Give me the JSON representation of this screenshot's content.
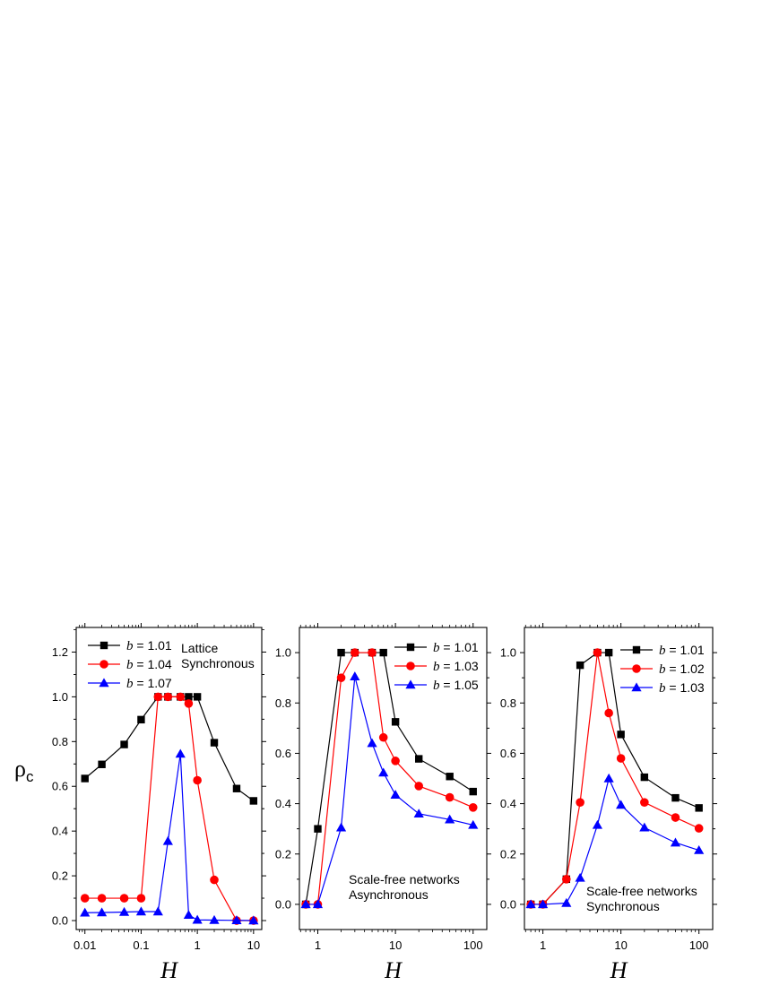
{
  "y_axis_label": {
    "main": "ρ",
    "sub": "c"
  },
  "chart_data": [
    {
      "type": "line",
      "xscale": "log",
      "xlim": [
        0.007,
        14
      ],
      "ylim": [
        -0.04,
        1.31
      ],
      "xticks": [
        0.01,
        0.1,
        1,
        10
      ],
      "xticklabels": [
        "0.01",
        "0.1",
        "1",
        "10"
      ],
      "yticks": [
        0.0,
        0.2,
        0.4,
        0.6,
        0.8,
        1.0,
        1.2
      ],
      "yticklabels": [
        "0.0",
        "0.2",
        "0.4",
        "0.6",
        "0.8",
        "1.0",
        "1.2"
      ],
      "xlabel": "H",
      "ylabel": "ρc",
      "annotation": [
        "Lattice",
        "Synchronous"
      ],
      "series": [
        {
          "name": "b = 1.01",
          "b_value": "1.01",
          "color": "#000000",
          "marker": "square",
          "x": [
            0.01,
            0.02,
            0.05,
            0.1,
            0.2,
            0.3,
            0.5,
            0.7,
            1,
            2,
            5,
            10
          ],
          "y": [
            0.635,
            0.698,
            0.787,
            0.898,
            1.0,
            1.0,
            1.0,
            1.0,
            1.0,
            0.795,
            0.59,
            0.535
          ]
        },
        {
          "name": "b = 1.04",
          "b_value": "1.04",
          "color": "#ff0000",
          "marker": "circle",
          "x": [
            0.01,
            0.02,
            0.05,
            0.1,
            0.2,
            0.3,
            0.5,
            0.7,
            1,
            2,
            5,
            10
          ],
          "y": [
            0.1,
            0.1,
            0.1,
            0.1,
            1.0,
            1.0,
            1.0,
            0.97,
            0.627,
            0.182,
            0.0,
            0.0
          ]
        },
        {
          "name": "b = 1.07",
          "b_value": "1.07",
          "color": "#0000ff",
          "marker": "triangle",
          "x": [
            0.01,
            0.02,
            0.05,
            0.1,
            0.2,
            0.3,
            0.5,
            0.7,
            1,
            2,
            5,
            10
          ],
          "y": [
            0.035,
            0.036,
            0.038,
            0.04,
            0.04,
            0.355,
            0.745,
            0.025,
            0.003,
            0.002,
            0.001,
            0.0
          ]
        }
      ]
    },
    {
      "type": "line",
      "xscale": "log",
      "xlim": [
        0.58,
        150
      ],
      "ylim": [
        -0.1,
        1.1
      ],
      "xticks": [
        1,
        10,
        100
      ],
      "xticklabels": [
        "1",
        "10",
        "100"
      ],
      "yticks": [
        0.0,
        0.2,
        0.4,
        0.6,
        0.8,
        1.0
      ],
      "yticklabels": [
        "0.0",
        "0.2",
        "0.4",
        "0.6",
        "0.8",
        "1.0"
      ],
      "xlabel": "H",
      "annotation": [
        "Scale-free networks",
        "Asynchronous"
      ],
      "series": [
        {
          "name": "b = 1.01",
          "b_value": "1.01",
          "color": "#000000",
          "marker": "square",
          "x": [
            0.7,
            1,
            2,
            3,
            5,
            7,
            10,
            20,
            50,
            100
          ],
          "y": [
            0.0,
            0.3,
            1.0,
            1.0,
            1.0,
            1.0,
            0.725,
            0.578,
            0.508,
            0.448
          ]
        },
        {
          "name": "b = 1.03",
          "b_value": "1.03",
          "color": "#ff0000",
          "marker": "circle",
          "x": [
            0.7,
            1,
            2,
            3,
            5,
            7,
            10,
            20,
            50,
            100
          ],
          "y": [
            0.0,
            0.0,
            0.9,
            1.0,
            1.0,
            0.663,
            0.57,
            0.47,
            0.425,
            0.385
          ]
        },
        {
          "name": "b = 1.05",
          "b_value": "1.05",
          "color": "#0000ff",
          "marker": "triangle",
          "x": [
            0.7,
            1,
            2,
            3,
            5,
            7,
            10,
            20,
            50,
            100
          ],
          "y": [
            0.0,
            0.0,
            0.305,
            0.905,
            0.64,
            0.523,
            0.435,
            0.36,
            0.337,
            0.315
          ]
        }
      ]
    },
    {
      "type": "line",
      "xscale": "log",
      "xlim": [
        0.58,
        150
      ],
      "ylim": [
        -0.1,
        1.1
      ],
      "xticks": [
        1,
        10,
        100
      ],
      "xticklabels": [
        "1",
        "10",
        "100"
      ],
      "yticks": [
        0.0,
        0.2,
        0.4,
        0.6,
        0.8,
        1.0
      ],
      "yticklabels": [
        "0.0",
        "0.2",
        "0.4",
        "0.6",
        "0.8",
        "1.0"
      ],
      "xlabel": "H",
      "annotation": [
        "Scale-free networks",
        "Synchronous"
      ],
      "series": [
        {
          "name": "b = 1.01",
          "b_value": "1.01",
          "color": "#000000",
          "marker": "square",
          "x": [
            0.7,
            1,
            2,
            3,
            5,
            7,
            10,
            20,
            50,
            100
          ],
          "y": [
            0.0,
            0.0,
            0.1,
            0.95,
            1.0,
            1.0,
            0.675,
            0.505,
            0.423,
            0.383
          ]
        },
        {
          "name": "b = 1.02",
          "b_value": "1.02",
          "color": "#ff0000",
          "marker": "circle",
          "x": [
            0.7,
            1,
            2,
            3,
            5,
            7,
            10,
            20,
            50,
            100
          ],
          "y": [
            0.0,
            0.0,
            0.1,
            0.405,
            1.0,
            0.76,
            0.58,
            0.405,
            0.345,
            0.302
          ]
        },
        {
          "name": "b = 1.03",
          "b_value": "1.03",
          "color": "#0000ff",
          "marker": "triangle",
          "x": [
            0.7,
            1,
            2,
            3,
            5,
            7,
            10,
            20,
            50,
            100
          ],
          "y": [
            0.0,
            0.0,
            0.005,
            0.105,
            0.315,
            0.5,
            0.395,
            0.305,
            0.245,
            0.215
          ]
        }
      ]
    }
  ]
}
